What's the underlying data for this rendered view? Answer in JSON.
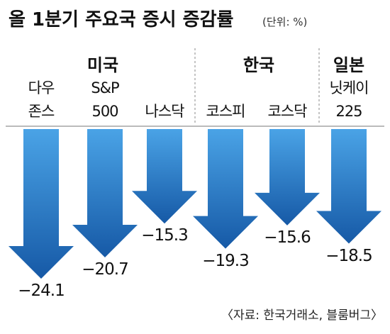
{
  "chart_data": {
    "type": "bar",
    "title": "올 1분기 주요국 증시 증감률",
    "subtitle": "(단위: %)",
    "groups": [
      {
        "name": "미국",
        "categories": [
          "다우\n존스",
          "S&P\n500",
          "나스닥"
        ],
        "values": [
          -24.1,
          -20.7,
          -15.3
        ],
        "value_labels": [
          "−24.1",
          "−20.7",
          "−15.3"
        ]
      },
      {
        "name": "한국",
        "categories": [
          "코스피",
          "코스닥"
        ],
        "values": [
          -19.3,
          -15.6
        ],
        "value_labels": [
          "−19.3",
          "−15.6"
        ]
      },
      {
        "name": "일본",
        "categories": [
          "닛케이\n225"
        ],
        "values": [
          -18.5
        ],
        "value_labels": [
          "−18.5"
        ]
      }
    ],
    "ylim": [
      -25,
      0
    ],
    "color": "#2474c4",
    "source": "〈자료: 한국거래소, 블룸버그〉"
  }
}
